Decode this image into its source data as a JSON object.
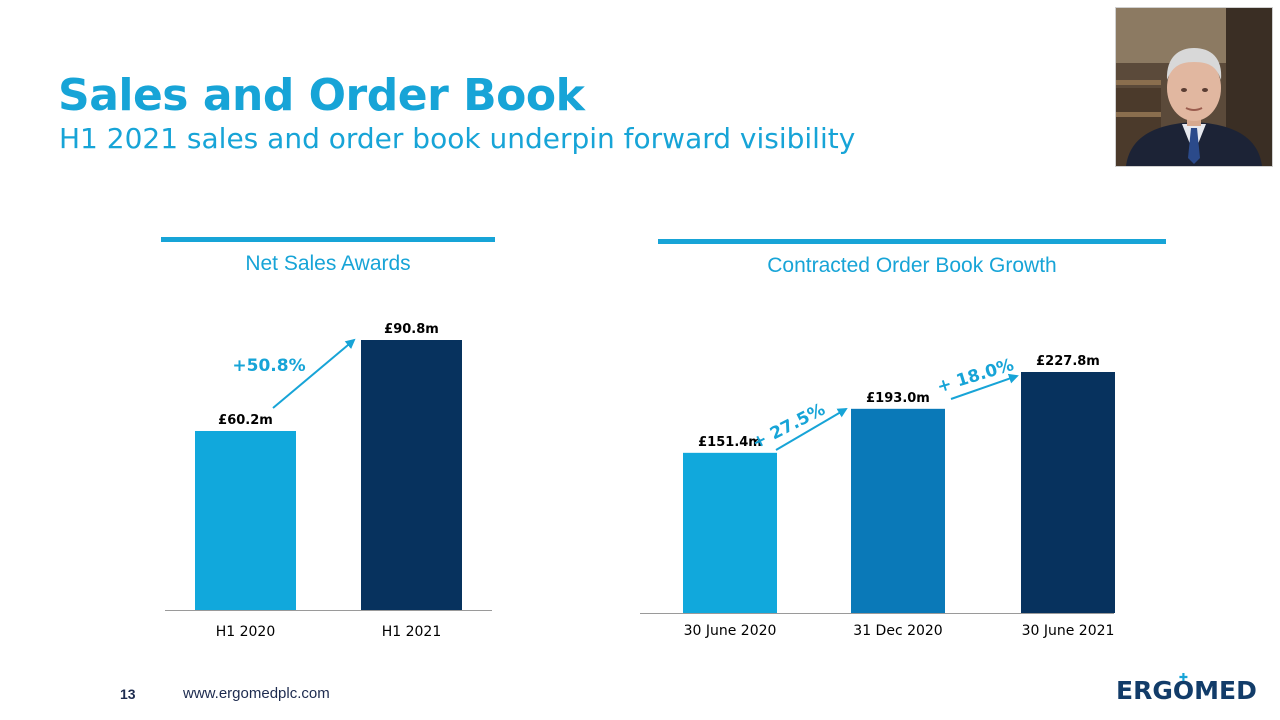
{
  "header": {
    "title": "Sales and Order Book",
    "subtitle": "H1 2021 sales and order book underpin forward visibility"
  },
  "footer": {
    "page_number": "13",
    "url": "www.ergomedplc.com",
    "logo_text": "ERGOMED"
  },
  "colors": {
    "brand_blue": "#17a4d7",
    "light_blue_bar": "#11a8dc",
    "mid_blue_bar": "#0a79b8",
    "navy_bar": "#07325e",
    "accent_line": "#17a4d7",
    "text_dark": "#000000"
  },
  "chart_data": [
    {
      "type": "bar",
      "title": "Net Sales Awards",
      "categories": [
        "H1 2020",
        "H1 2021"
      ],
      "values": [
        60.2,
        90.8
      ],
      "value_labels": [
        "£60.2m",
        "£90.8m"
      ],
      "bar_colors": [
        "#11a8dc",
        "#07325e"
      ],
      "growth_annotations": [
        "+50.8%"
      ],
      "unit": "£m",
      "ylim": [
        0,
        100
      ],
      "grid": false,
      "legend": "none"
    },
    {
      "type": "bar",
      "title": "Contracted Order Book Growth",
      "categories": [
        "30 June 2020",
        "31 Dec 2020",
        "30 June 2021"
      ],
      "values": [
        151.4,
        193.0,
        227.8
      ],
      "value_labels": [
        "£151.4m",
        "£193.0m",
        "£227.8m"
      ],
      "bar_colors": [
        "#11a8dc",
        "#0a79b8",
        "#07325e"
      ],
      "growth_annotations": [
        "+ 27.5%",
        "+ 18.0%"
      ],
      "unit": "£m",
      "ylim": [
        0,
        250
      ],
      "grid": false,
      "legend": "none"
    }
  ]
}
